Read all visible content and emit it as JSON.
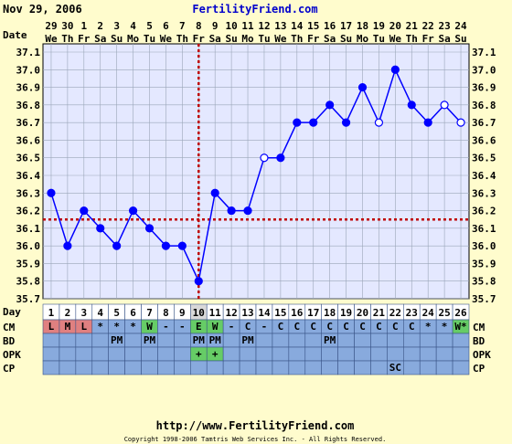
{
  "header": {
    "date": "Nov 29, 2006",
    "site": "FertilityFriend.com"
  },
  "footer": {
    "url": "http://www.FertilityFriend.com",
    "copyright": "Copyright 1998-2006 Tamtris Web Services Inc. - All Rights Reserved."
  },
  "row_labels": {
    "date": "Date",
    "day": "Day",
    "cm": "CM",
    "bd": "BD",
    "opk": "OPK",
    "cp": "CP"
  },
  "dates": [
    "29",
    "30",
    "1",
    "2",
    "3",
    "4",
    "5",
    "6",
    "7",
    "8",
    "9",
    "10",
    "11",
    "12",
    "13",
    "14",
    "15",
    "16",
    "17",
    "18",
    "19",
    "20",
    "21",
    "22",
    "23",
    "24"
  ],
  "weekdays": [
    "We",
    "Th",
    "Fr",
    "Sa",
    "Su",
    "Mo",
    "Tu",
    "We",
    "Th",
    "Fr",
    "Sa",
    "Su",
    "Mo",
    "Tu",
    "We",
    "Th",
    "Fr",
    "Sa",
    "Su",
    "Mo",
    "Tu",
    "We",
    "Th",
    "Fr",
    "Sa",
    "Su"
  ],
  "days": [
    "1",
    "2",
    "3",
    "4",
    "5",
    "6",
    "7",
    "8",
    "9",
    "10",
    "11",
    "12",
    "13",
    "14",
    "15",
    "16",
    "17",
    "18",
    "19",
    "20",
    "21",
    "22",
    "23",
    "24",
    "25",
    "26"
  ],
  "cm": [
    "L",
    "M",
    "L",
    "*",
    "*",
    "*",
    "W",
    "-",
    "-",
    "E",
    "W",
    "-",
    "C",
    "-",
    "C",
    "C",
    "C",
    "C",
    "C",
    "C",
    "C",
    "C",
    "C",
    "*",
    "*",
    "W*"
  ],
  "bd": [
    "",
    "",
    "",
    "",
    "PM",
    "",
    "PM",
    "",
    "",
    "PM",
    "PM",
    "",
    "PM",
    "",
    "",
    "",
    "",
    "PM",
    "",
    "",
    "",
    "",
    "",
    "",
    "",
    ""
  ],
  "opk": [
    "",
    "",
    "",
    "",
    "",
    "",
    "",
    "",
    "",
    "+",
    "+",
    "",
    "",
    "",
    "",
    "",
    "",
    "",
    "",
    "",
    "",
    "",
    "",
    "",
    "",
    ""
  ],
  "cp": [
    "",
    "",
    "",
    "",
    "",
    "",
    "",
    "",
    "",
    "",
    "",
    "",
    "",
    "",
    "",
    "",
    "",
    "",
    "",
    "",
    "",
    "SC",
    "",
    "",
    "",
    ""
  ],
  "colors": {
    "background": "#fffccd",
    "plot_bg": "#e4e8ff",
    "grid": "#9aa6b8",
    "line": "#0000ff",
    "coverline": "#c00000",
    "site_link": "#0000cc",
    "cm_period": "#e08080",
    "cm_wet": "#66cc66",
    "row_bg": "#88aadd",
    "header_cell": "#ffffff",
    "opk_plus": "#66cc66"
  },
  "chart_data": {
    "type": "line",
    "ylim": [
      35.7,
      37.1
    ],
    "yticks": [
      "37.1",
      "37.0",
      "36.9",
      "36.8",
      "36.7",
      "36.6",
      "36.5",
      "36.4",
      "36.3",
      "36.2",
      "36.1",
      "36.0",
      "35.9",
      "35.8",
      "35.7"
    ],
    "coverline": 36.15,
    "ovulation_day": 10,
    "series": [
      {
        "x": [
          1,
          2,
          3,
          4,
          5,
          6,
          7,
          8,
          9,
          10,
          11,
          12,
          13,
          14,
          15,
          16,
          17,
          18,
          19,
          20,
          21,
          22,
          23,
          24,
          25,
          26
        ],
        "values": [
          36.3,
          36.0,
          36.2,
          36.1,
          36.0,
          36.2,
          36.1,
          36.0,
          36.0,
          35.8,
          36.3,
          36.2,
          36.2,
          36.5,
          36.5,
          36.7,
          36.7,
          36.8,
          36.7,
          36.9,
          36.7,
          37.0,
          36.8,
          36.7,
          36.8,
          36.7
        ],
        "open": [
          false,
          false,
          false,
          false,
          false,
          false,
          false,
          false,
          false,
          false,
          false,
          false,
          false,
          true,
          false,
          false,
          false,
          false,
          false,
          false,
          true,
          false,
          false,
          false,
          true,
          true
        ]
      }
    ]
  }
}
